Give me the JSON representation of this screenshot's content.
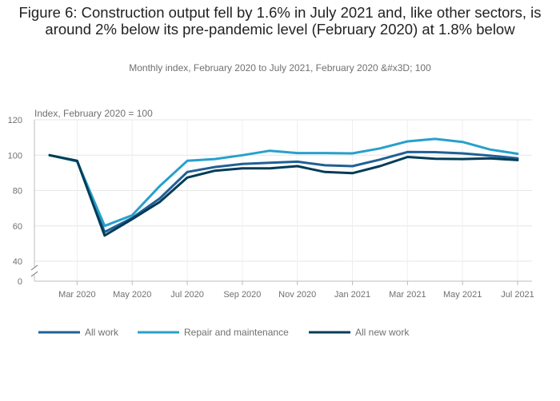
{
  "chart_data": {
    "type": "line",
    "title": "Figure 6: Construction output fell by 1.6% in July 2021 and, like other sectors, is around 2% below its pre-pandemic level (February 2020) at 1.8% below",
    "subtitle": "Monthly index, February 2020 to July 2021, February 2020 &#x3D; 100",
    "ylabel": "Index, February 2020 = 100",
    "xlabel": "",
    "ylim": [
      40,
      120
    ],
    "y_axis_break": true,
    "y_baseline_label": "0",
    "yticks": [
      40,
      60,
      80,
      100,
      120
    ],
    "x": [
      "Feb 2020",
      "Mar 2020",
      "Apr 2020",
      "May 2020",
      "Jun 2020",
      "Jul 2020",
      "Aug 2020",
      "Sep 2020",
      "Oct 2020",
      "Nov 2020",
      "Dec 2020",
      "Jan 2021",
      "Feb 2021",
      "Mar 2021",
      "Apr 2021",
      "May 2021",
      "Jun 2021",
      "Jul 2021"
    ],
    "xtick_labels": [
      "Mar 2020",
      "May 2020",
      "Jul 2020",
      "Sep 2020",
      "Nov 2020",
      "Jan 2021",
      "Mar 2021",
      "May 2021",
      "Jul 2021"
    ],
    "grid": true,
    "legend": "bottom",
    "series": [
      {
        "name": "All work",
        "color": "#206095",
        "values": [
          100,
          96.8,
          56.5,
          64.5,
          75.5,
          90.5,
          93.3,
          95,
          95.7,
          96.3,
          94.3,
          93.8,
          97.5,
          101.8,
          101.7,
          101,
          99.7,
          98.2
        ]
      },
      {
        "name": "Repair and maintenance",
        "color": "#27a0cc",
        "values": [
          100,
          96.5,
          60,
          66,
          82.5,
          96.8,
          97.8,
          100,
          102.5,
          101.2,
          101.2,
          101,
          103.8,
          107.8,
          109.2,
          107.5,
          103.2,
          100.8
        ]
      },
      {
        "name": "All new work",
        "color": "#003c57",
        "values": [
          100,
          96.8,
          54.5,
          63.8,
          73.5,
          87.3,
          91.2,
          92.5,
          92.5,
          93.8,
          90.5,
          89.8,
          93.8,
          99,
          98,
          97.8,
          98.2,
          97.2
        ]
      }
    ]
  }
}
